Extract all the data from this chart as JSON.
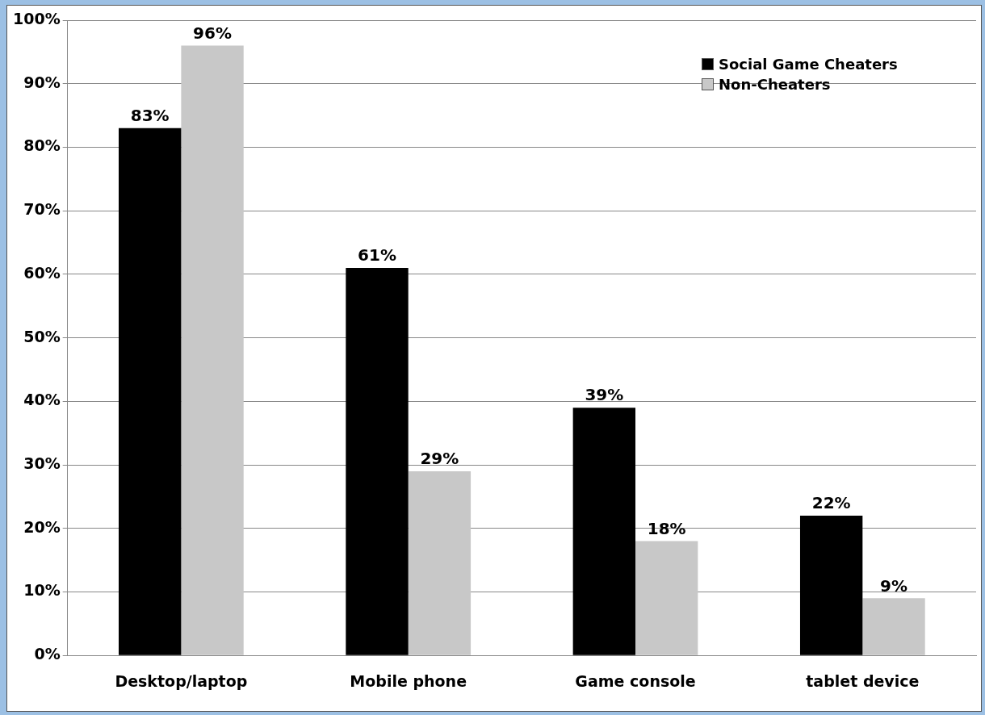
{
  "chart_data": {
    "type": "bar",
    "categories": [
      "Desktop/laptop",
      "Mobile phone",
      "Game console",
      "tablet device"
    ],
    "series": [
      {
        "name": "Social Game Cheaters",
        "color": "#000000",
        "values": [
          83,
          61,
          39,
          22
        ]
      },
      {
        "name": "Non-Cheaters",
        "color": "#c8c8c8",
        "values": [
          96,
          29,
          18,
          9
        ]
      }
    ],
    "ylim": [
      0,
      100
    ],
    "yticks": [
      {
        "value": 0,
        "label": "0%"
      },
      {
        "value": 10,
        "label": "10%"
      },
      {
        "value": 20,
        "label": "20%"
      },
      {
        "value": 30,
        "label": "30%"
      },
      {
        "value": 40,
        "label": "40%"
      },
      {
        "value": 50,
        "label": "50%"
      },
      {
        "value": 60,
        "label": "60%"
      },
      {
        "value": 70,
        "label": "70%"
      },
      {
        "value": 80,
        "label": "80%"
      },
      {
        "value": 90,
        "label": "90%"
      },
      {
        "value": 100,
        "label": "100%"
      }
    ],
    "value_labels": [
      [
        "83%",
        "61%",
        "39%",
        "22%"
      ],
      [
        "96%",
        "29%",
        "18%",
        "9%"
      ]
    ],
    "grid": "y",
    "legend": "top right"
  }
}
